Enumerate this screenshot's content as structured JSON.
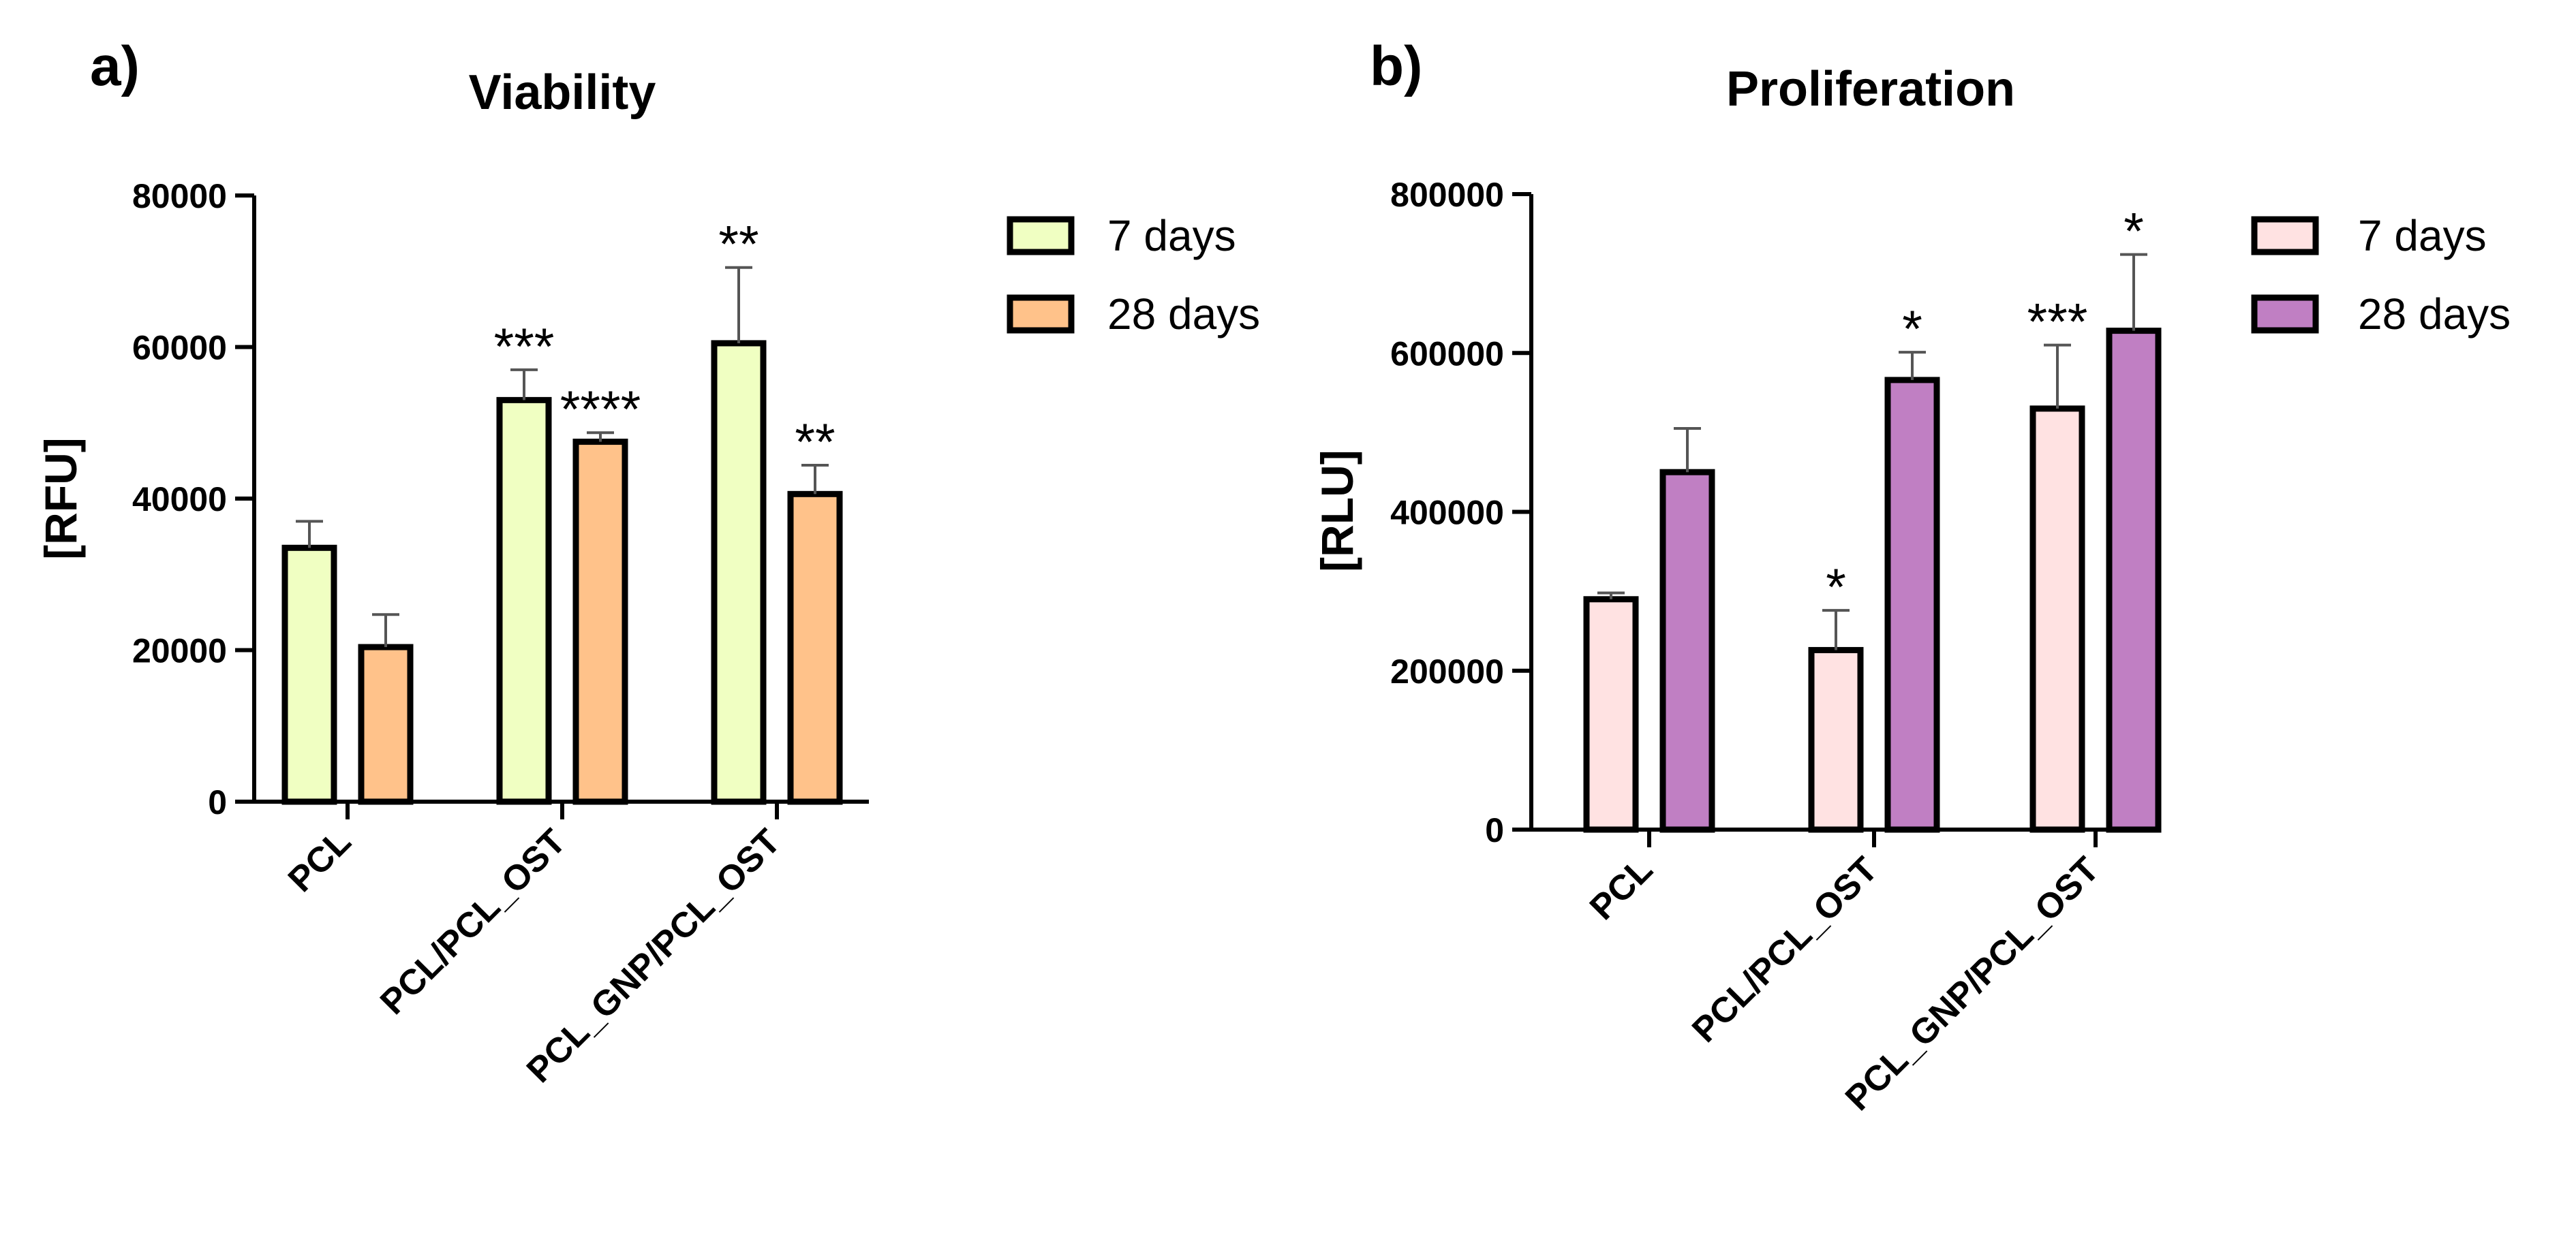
{
  "chart_data": [
    {
      "panel_label": "a)",
      "type": "bar",
      "title": "Viability",
      "xlabel": "",
      "ylabel": "[RFU]",
      "ylim": [
        0,
        80000
      ],
      "yticks": [
        "0",
        "20000",
        "40000",
        "60000",
        "80000"
      ],
      "categories": [
        "PCL",
        "PCL/PCL_OST",
        "PCL_GNP/PCL_OST"
      ],
      "legend_position": "top-right",
      "grid": false,
      "series": [
        {
          "name": "7 days",
          "color": "#f0ffc2",
          "values": [
            33500,
            53000,
            60500
          ],
          "errors": [
            3500,
            4000,
            10000
          ],
          "significance": [
            "",
            "***",
            "**"
          ]
        },
        {
          "name": "28 days",
          "color": "#ffc28a",
          "values": [
            20400,
            47500,
            40600
          ],
          "errors": [
            4300,
            1200,
            3800
          ],
          "significance": [
            "",
            "****",
            "**"
          ]
        }
      ]
    },
    {
      "panel_label": "b)",
      "type": "bar",
      "title": "Proliferation",
      "xlabel": "",
      "ylabel": "[RLU]",
      "ylim": [
        0,
        800000
      ],
      "yticks": [
        "0",
        "200000",
        "400000",
        "600000",
        "800000"
      ],
      "categories": [
        "PCL",
        "PCL/PCL_OST",
        "PCL_GNP/PCL_OST"
      ],
      "legend_position": "top-right",
      "grid": false,
      "series": [
        {
          "name": "7 days",
          "color": "#ffe2e2",
          "values": [
            290000,
            226000,
            530000
          ],
          "errors": [
            8000,
            50000,
            80000
          ],
          "significance": [
            "",
            "*",
            "***"
          ]
        },
        {
          "name": "28 days",
          "color": "#c07fc3",
          "values": [
            450000,
            566000,
            628000
          ],
          "errors": [
            55000,
            35000,
            96000
          ],
          "significance": [
            "",
            "*",
            "*"
          ]
        }
      ]
    }
  ]
}
